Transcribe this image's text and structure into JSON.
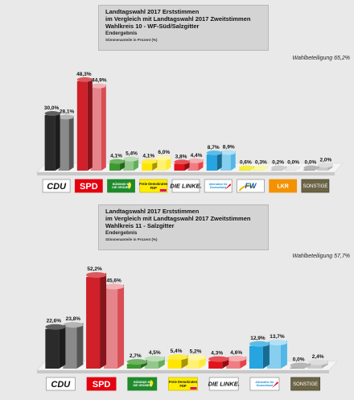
{
  "chart_data": [
    {
      "type": "bar",
      "title": "Landtagswahl 2017 Erststimmen",
      "subtitle": "im Vergleich mit Landtagswahl 2017 Zweitstimmen",
      "district": "Wahlkreis 10 - WF-Süd/Salzgitter",
      "status": "Endergebnis",
      "note": "Stimmenanteile in Prozent (%)",
      "turnout": "Wahlbeteiligung 65,2%",
      "categories": [
        "CDU",
        "SPD",
        "GRÜNE",
        "FDP",
        "DIE LINKE.",
        "AfD",
        "FW",
        "LKR",
        "SONSTIGE"
      ],
      "series": [
        {
          "values": [
            30.0,
            48.3,
            4.1,
            4.1,
            3.8,
            8.7,
            0.6,
            0.2,
            0.0
          ]
        },
        {
          "values": [
            28.1,
            44.9,
            5.4,
            6.0,
            4.4,
            8.9,
            0.3,
            0.0,
            2.0
          ]
        }
      ],
      "labels": [
        [
          "30,0%",
          "48,3%",
          "4,1%",
          "4,1%",
          "3,8%",
          "8,7%",
          "0,6%",
          "0,2%",
          "0,0%"
        ],
        [
          "28,1%",
          "44,9%",
          "5,4%",
          "6,0%",
          "4,4%",
          "8,9%",
          "0,3%",
          "0,0%",
          "2,0%"
        ]
      ],
      "ylim": [
        0,
        50
      ]
    },
    {
      "type": "bar",
      "title": "Landtagswahl 2017 Erststimmen",
      "subtitle": "im Vergleich mit Landtagswahl 2017 Zweitstimmen",
      "district": "Wahlkreis 11 - Salzgitter",
      "status": "Endergebnis",
      "note": "Stimmenanteile in Prozent (%)",
      "turnout": "Wahlbeteiligung 57,7%",
      "categories": [
        "CDU",
        "SPD",
        "GRÜNE",
        "FDP",
        "DIE LINKE.",
        "AfD",
        "SONSTIGE"
      ],
      "series": [
        {
          "values": [
            22.6,
            52.2,
            2.7,
            5.4,
            4.3,
            12.9,
            0.0
          ]
        },
        {
          "values": [
            23.8,
            45.6,
            4.5,
            5.2,
            4.6,
            13.7,
            2.4
          ]
        }
      ],
      "labels": [
        [
          "22,6%",
          "52,2%",
          "2,7%",
          "5,4%",
          "4,3%",
          "12,9%",
          "0,0%"
        ],
        [
          "23,8%",
          "45,6%",
          "4,5%",
          "5,2%",
          "4,6%",
          "13,7%",
          "2,4%"
        ]
      ],
      "ylim": [
        0,
        55
      ]
    }
  ],
  "logos": {
    "CDU": "CDU",
    "SPD": "SPD",
    "GRÜNE": "BÜNDNIS 90 DIE GRÜNEN",
    "FDP": "Freie Demokraten FDP",
    "DIE LINKE.": "DIE LINKE.",
    "AfD": "Alternative für Deutschland",
    "FW": "FW",
    "LKR": "LKR",
    "SONSTIGE": "SONSTIGE"
  },
  "colors": {
    "CDU": "#2b2b2b",
    "SPD": "#d0202a",
    "GRÜNE": "#3c9a2e",
    "FDP": "#ffe600",
    "DIE LINKE.": "#e0141c",
    "AfD": "#26a5e0",
    "FW": "#f0e800",
    "LKR": "#bdbdbd",
    "SONSTIGE": "#9e9e9e"
  }
}
